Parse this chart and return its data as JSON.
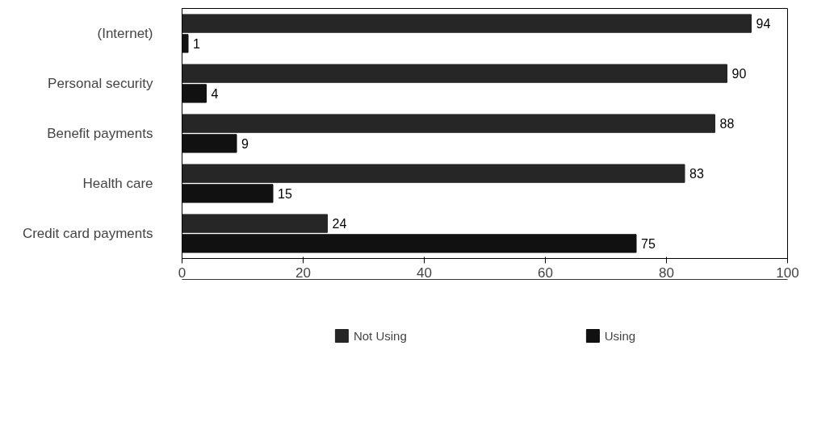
{
  "chart_data": {
    "type": "bar",
    "orientation": "horizontal",
    "categories": [
      "(Internet)",
      "Personal security",
      "Benefit payments",
      "Health care",
      "Credit card payments"
    ],
    "series": [
      {
        "name": "Not Using",
        "color": "#262626",
        "values": [
          94,
          90,
          88,
          83,
          24
        ]
      },
      {
        "name": "Using",
        "color": "#111111",
        "values": [
          1,
          4,
          9,
          15,
          75
        ]
      }
    ],
    "xlim": [
      0,
      100
    ],
    "xticks": [
      0,
      20,
      40,
      60,
      80,
      100
    ],
    "data_labels": true,
    "grid": false,
    "legend": "bottom"
  }
}
